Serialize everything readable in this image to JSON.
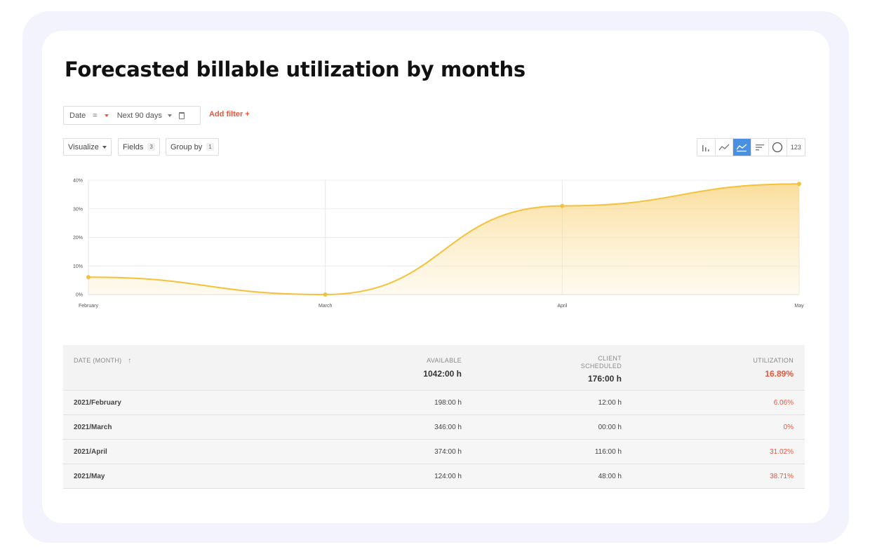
{
  "title": "Forecasted billable utilization by months",
  "filter": {
    "field": "Date",
    "operator": "=",
    "value": "Next 90 days",
    "add_filter_label": "Add filter +"
  },
  "toolbar": {
    "visualize_label": "Visualize",
    "fields_label": "Fields",
    "fields_count": "3",
    "group_by_label": "Group by",
    "group_by_count": "1",
    "viz_types": [
      "bar-chart-icon",
      "line-chart-icon",
      "area-chart-icon",
      "sorted-bars-icon",
      "pie-chart-icon",
      "number-icon"
    ],
    "number_label": "123",
    "active_viz": "area"
  },
  "colors": {
    "accent_red": "#e8553a",
    "line_yellow": "#f3c13a",
    "active_blue": "#4a90e2"
  },
  "chart_data": {
    "type": "area",
    "categories": [
      "February",
      "March",
      "April",
      "May"
    ],
    "values": [
      6.06,
      0,
      31.02,
      38.71
    ],
    "y_ticks": [
      "40%",
      "30%",
      "20%",
      "10%",
      "0%"
    ],
    "ylim": [
      0,
      40
    ],
    "grid": true,
    "legend": "none"
  },
  "table": {
    "headers": {
      "date": "DATE (MONTH)",
      "available": "AVAILABLE",
      "client_scheduled_line1": "CLIENT",
      "client_scheduled_line2": "SCHEDULED",
      "utilization": "UTILIZATION"
    },
    "totals": {
      "available": "1042:00 h",
      "client_scheduled": "176:00 h",
      "utilization": "16.89%"
    },
    "rows": [
      {
        "date": "2021/February",
        "available": "198:00 h",
        "scheduled": "12:00 h",
        "utilization": "6.06%"
      },
      {
        "date": "2021/March",
        "available": "346:00 h",
        "scheduled": "00:00 h",
        "utilization": "0%"
      },
      {
        "date": "2021/April",
        "available": "374:00 h",
        "scheduled": "116:00 h",
        "utilization": "31.02%"
      },
      {
        "date": "2021/May",
        "available": "124:00 h",
        "scheduled": "48:00 h",
        "utilization": "38.71%"
      }
    ]
  }
}
